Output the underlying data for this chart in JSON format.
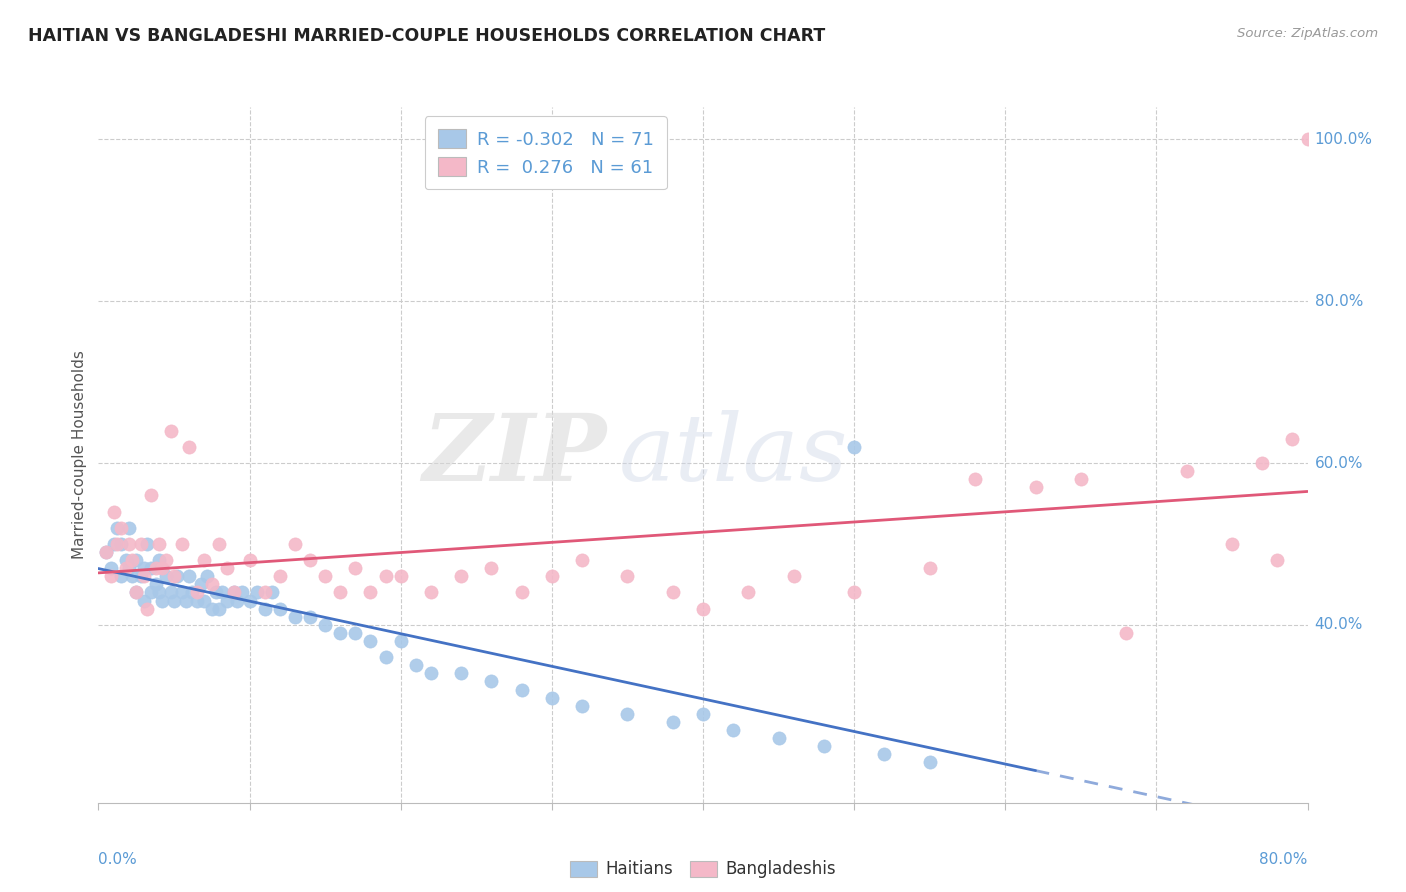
{
  "title": "HAITIAN VS BANGLADESHI MARRIED-COUPLE HOUSEHOLDS CORRELATION CHART",
  "source": "Source: ZipAtlas.com",
  "ylabel": "Married-couple Households",
  "xmin": 0.0,
  "xmax": 0.8,
  "ymin": 0.18,
  "ymax": 1.04,
  "haitian_color": "#a8c8e8",
  "bangladeshi_color": "#f4b8c8",
  "haitian_line_color": "#4472c4",
  "bangladeshi_line_color": "#e05878",
  "haitian_line_dash_color": "#a0b8d8",
  "background_color": "#ffffff",
  "watermark_zip": "ZIP",
  "watermark_atlas": "atlas",
  "legend_r_haitian": "-0.302",
  "legend_n_haitian": "71",
  "legend_r_bangladeshi": "0.276",
  "legend_n_bangladeshi": "61",
  "right_yticks": [
    0.4,
    0.6,
    0.8,
    1.0
  ],
  "right_ytick_labels": [
    "40.0%",
    "60.0%",
    "80.0%",
    "100.0%"
  ],
  "haitian_scatter_x": [
    0.005,
    0.008,
    0.01,
    0.012,
    0.015,
    0.015,
    0.018,
    0.02,
    0.02,
    0.022,
    0.025,
    0.025,
    0.028,
    0.03,
    0.03,
    0.032,
    0.035,
    0.035,
    0.038,
    0.04,
    0.04,
    0.042,
    0.045,
    0.048,
    0.05,
    0.052,
    0.055,
    0.058,
    0.06,
    0.062,
    0.065,
    0.068,
    0.07,
    0.072,
    0.075,
    0.078,
    0.08,
    0.082,
    0.085,
    0.09,
    0.092,
    0.095,
    0.1,
    0.105,
    0.11,
    0.115,
    0.12,
    0.13,
    0.14,
    0.15,
    0.16,
    0.17,
    0.18,
    0.19,
    0.2,
    0.21,
    0.22,
    0.24,
    0.26,
    0.28,
    0.3,
    0.32,
    0.35,
    0.38,
    0.4,
    0.42,
    0.45,
    0.48,
    0.5,
    0.52,
    0.55
  ],
  "haitian_scatter_y": [
    0.49,
    0.47,
    0.5,
    0.52,
    0.46,
    0.5,
    0.48,
    0.47,
    0.52,
    0.46,
    0.44,
    0.48,
    0.46,
    0.43,
    0.47,
    0.5,
    0.44,
    0.47,
    0.45,
    0.44,
    0.48,
    0.43,
    0.46,
    0.44,
    0.43,
    0.46,
    0.44,
    0.43,
    0.46,
    0.44,
    0.43,
    0.45,
    0.43,
    0.46,
    0.42,
    0.44,
    0.42,
    0.44,
    0.43,
    0.44,
    0.43,
    0.44,
    0.43,
    0.44,
    0.42,
    0.44,
    0.42,
    0.41,
    0.41,
    0.4,
    0.39,
    0.39,
    0.38,
    0.36,
    0.38,
    0.35,
    0.34,
    0.34,
    0.33,
    0.32,
    0.31,
    0.3,
    0.29,
    0.28,
    0.29,
    0.27,
    0.26,
    0.25,
    0.62,
    0.24,
    0.23
  ],
  "bangladeshi_scatter_x": [
    0.005,
    0.008,
    0.01,
    0.012,
    0.015,
    0.018,
    0.02,
    0.022,
    0.025,
    0.028,
    0.03,
    0.032,
    0.035,
    0.038,
    0.04,
    0.042,
    0.045,
    0.048,
    0.05,
    0.055,
    0.06,
    0.065,
    0.07,
    0.075,
    0.08,
    0.085,
    0.09,
    0.1,
    0.11,
    0.12,
    0.13,
    0.14,
    0.15,
    0.16,
    0.17,
    0.18,
    0.19,
    0.2,
    0.22,
    0.24,
    0.26,
    0.28,
    0.3,
    0.32,
    0.35,
    0.38,
    0.4,
    0.43,
    0.46,
    0.5,
    0.55,
    0.58,
    0.62,
    0.65,
    0.68,
    0.72,
    0.75,
    0.77,
    0.78,
    0.79,
    0.8
  ],
  "bangladeshi_scatter_y": [
    0.49,
    0.46,
    0.54,
    0.5,
    0.52,
    0.47,
    0.5,
    0.48,
    0.44,
    0.5,
    0.46,
    0.42,
    0.56,
    0.47,
    0.5,
    0.47,
    0.48,
    0.64,
    0.46,
    0.5,
    0.62,
    0.44,
    0.48,
    0.45,
    0.5,
    0.47,
    0.44,
    0.48,
    0.44,
    0.46,
    0.5,
    0.48,
    0.46,
    0.44,
    0.47,
    0.44,
    0.46,
    0.46,
    0.44,
    0.46,
    0.47,
    0.44,
    0.46,
    0.48,
    0.46,
    0.44,
    0.42,
    0.44,
    0.46,
    0.44,
    0.47,
    0.58,
    0.57,
    0.58,
    0.39,
    0.59,
    0.5,
    0.6,
    0.48,
    0.63,
    1.0
  ]
}
